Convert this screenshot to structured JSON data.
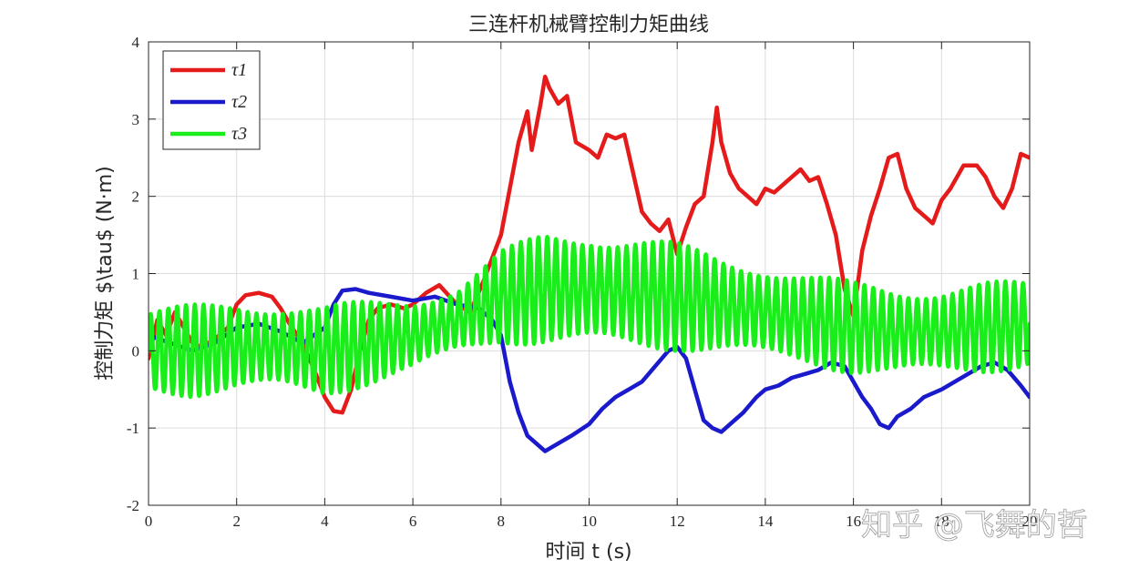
{
  "chart_data": {
    "type": "line",
    "title": "三连杆机械臂控制力矩曲线",
    "xlabel": "时间 t (s)",
    "ylabel": "控制力矩 $\\tau$ (N·m)",
    "xlim": [
      0,
      20
    ],
    "ylim": [
      -2,
      4
    ],
    "xticks": [
      "0",
      "2",
      "4",
      "6",
      "8",
      "10",
      "12",
      "14",
      "16",
      "18",
      "20"
    ],
    "yticks": [
      "-2",
      "-1",
      "0",
      "1",
      "2",
      "3",
      "4"
    ],
    "grid": true,
    "legend_position": "top-left",
    "series": [
      {
        "name": "τ1",
        "color": "#e51a1a",
        "x": [
          0,
          0.2,
          0.4,
          0.6,
          0.8,
          1.0,
          1.2,
          1.5,
          1.8,
          2.0,
          2.2,
          2.5,
          2.8,
          3.0,
          3.2,
          3.5,
          3.8,
          4.0,
          4.2,
          4.4,
          4.6,
          4.8,
          5.0,
          5.2,
          5.5,
          5.8,
          6.0,
          6.3,
          6.6,
          7.0,
          7.3,
          7.6,
          7.8,
          8.0,
          8.2,
          8.4,
          8.6,
          8.7,
          8.9,
          9.0,
          9.1,
          9.3,
          9.5,
          9.7,
          10.0,
          10.2,
          10.4,
          10.6,
          10.8,
          11.0,
          11.2,
          11.4,
          11.6,
          11.8,
          12.0,
          12.2,
          12.4,
          12.6,
          12.8,
          12.9,
          13.0,
          13.2,
          13.4,
          13.6,
          13.8,
          14.0,
          14.2,
          14.5,
          14.8,
          15.0,
          15.2,
          15.4,
          15.6,
          15.8,
          16.0,
          16.2,
          16.4,
          16.6,
          16.8,
          17.0,
          17.2,
          17.4,
          17.6,
          17.8,
          18.0,
          18.2,
          18.5,
          18.8,
          19.0,
          19.2,
          19.4,
          19.6,
          19.8,
          20.0
        ],
        "values": [
          -0.1,
          0.4,
          0.2,
          0.5,
          0.3,
          0.1,
          0.05,
          0.15,
          0.3,
          0.6,
          0.72,
          0.75,
          0.7,
          0.55,
          0.35,
          0.1,
          -0.3,
          -0.6,
          -0.78,
          -0.8,
          -0.5,
          0.0,
          0.4,
          0.55,
          0.6,
          0.55,
          0.6,
          0.75,
          0.85,
          0.6,
          0.5,
          0.9,
          1.2,
          1.5,
          2.1,
          2.7,
          3.1,
          2.6,
          3.2,
          3.55,
          3.4,
          3.2,
          3.3,
          2.7,
          2.6,
          2.5,
          2.8,
          2.75,
          2.8,
          2.3,
          1.8,
          1.65,
          1.55,
          1.7,
          1.25,
          1.6,
          1.9,
          2.0,
          2.7,
          3.15,
          2.7,
          2.3,
          2.1,
          2.0,
          1.9,
          2.1,
          2.05,
          2.2,
          2.35,
          2.2,
          2.25,
          1.9,
          1.5,
          0.8,
          0.45,
          1.3,
          1.75,
          2.1,
          2.5,
          2.55,
          2.1,
          1.85,
          1.75,
          1.65,
          1.95,
          2.1,
          2.4,
          2.4,
          2.25,
          2.0,
          1.85,
          2.1,
          2.55,
          2.5
        ]
      },
      {
        "name": "τ2",
        "color": "#1a1acc",
        "x": [
          0,
          0.5,
          1.0,
          1.5,
          2.0,
          2.5,
          3.0,
          3.5,
          4.0,
          4.2,
          4.4,
          4.7,
          5.0,
          5.5,
          6.0,
          6.5,
          7.0,
          7.5,
          7.8,
          8.0,
          8.2,
          8.4,
          8.6,
          8.8,
          9.0,
          9.3,
          9.6,
          10.0,
          10.3,
          10.6,
          10.9,
          11.2,
          11.5,
          11.8,
          12.0,
          12.2,
          12.4,
          12.6,
          12.8,
          13.0,
          13.2,
          13.5,
          13.8,
          14.0,
          14.3,
          14.6,
          14.9,
          15.2,
          15.5,
          15.8,
          16.0,
          16.2,
          16.4,
          16.6,
          16.8,
          17.0,
          17.3,
          17.6,
          18.0,
          18.3,
          18.6,
          18.9,
          19.2,
          19.5,
          19.8,
          20.0
        ],
        "values": [
          0.2,
          0.1,
          0.0,
          0.1,
          0.3,
          0.35,
          0.25,
          0.1,
          0.3,
          0.6,
          0.78,
          0.8,
          0.75,
          0.7,
          0.65,
          0.7,
          0.6,
          0.55,
          0.4,
          0.2,
          -0.4,
          -0.8,
          -1.1,
          -1.2,
          -1.3,
          -1.2,
          -1.1,
          -0.95,
          -0.75,
          -0.6,
          -0.5,
          -0.4,
          -0.2,
          0.0,
          0.05,
          -0.1,
          -0.5,
          -0.9,
          -1.0,
          -1.05,
          -0.95,
          -0.8,
          -0.6,
          -0.5,
          -0.45,
          -0.35,
          -0.3,
          -0.25,
          -0.15,
          -0.2,
          -0.4,
          -0.6,
          -0.75,
          -0.95,
          -1.0,
          -0.85,
          -0.75,
          -0.6,
          -0.5,
          -0.4,
          -0.3,
          -0.2,
          -0.15,
          -0.25,
          -0.45,
          -0.6
        ]
      },
      {
        "name": "τ3",
        "color": "#1aee1a",
        "period": 0.2,
        "envelope_x": [
          0,
          1,
          2,
          3,
          4,
          5,
          6,
          7,
          8,
          9,
          10,
          11,
          12,
          13,
          14,
          15,
          16,
          17,
          18,
          19,
          20
        ],
        "envelope_center": [
          0.0,
          0.0,
          0.05,
          0.05,
          0.0,
          0.1,
          0.2,
          0.4,
          0.7,
          0.8,
          0.8,
          0.75,
          0.7,
          0.6,
          0.5,
          0.4,
          0.3,
          0.25,
          0.25,
          0.3,
          0.35
        ],
        "envelope_amplitude": [
          0.55,
          0.6,
          0.6,
          0.6,
          0.6,
          0.55,
          0.5,
          0.45,
          0.6,
          0.75,
          0.8,
          0.75,
          0.7,
          0.65,
          0.65,
          0.6,
          0.6,
          0.6,
          0.6,
          0.6,
          0.55
        ]
      }
    ]
  },
  "watermark": "知乎 @飞舞的哲"
}
